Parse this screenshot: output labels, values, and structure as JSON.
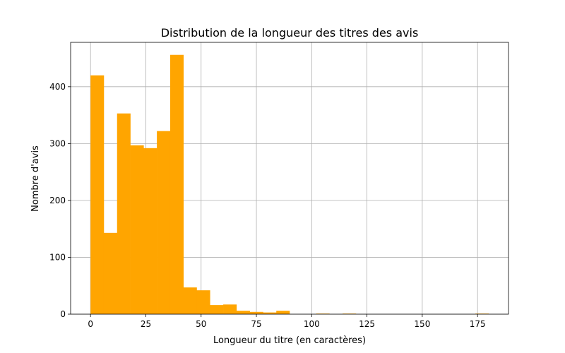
{
  "chart_data": {
    "type": "bar",
    "title": "Distribution de la longueur des titres des avis",
    "xlabel": "Longueur du titre (en caractères)",
    "ylabel": "Nombre d'avis",
    "xlim": [
      -9,
      189
    ],
    "ylim": [
      0,
      478
    ],
    "x_ticks": [
      0,
      25,
      50,
      75,
      100,
      125,
      150,
      175
    ],
    "y_ticks": [
      0,
      100,
      200,
      300,
      400
    ],
    "grid": true,
    "legend": "none",
    "bar_color": "#ffa500",
    "bins": {
      "edges": [
        0,
        6,
        12,
        18,
        24,
        30,
        36,
        42,
        48,
        54,
        60,
        66,
        72,
        78,
        84,
        90,
        96,
        102,
        108,
        114,
        120,
        126,
        132,
        138,
        144,
        150,
        156,
        162,
        168,
        174,
        180
      ],
      "counts": [
        420,
        143,
        353,
        297,
        292,
        322,
        456,
        47,
        42,
        16,
        17,
        6,
        4,
        3,
        6,
        0,
        0,
        1,
        0,
        1,
        0,
        0,
        0,
        0,
        0,
        0,
        0,
        0,
        0,
        1
      ]
    }
  }
}
